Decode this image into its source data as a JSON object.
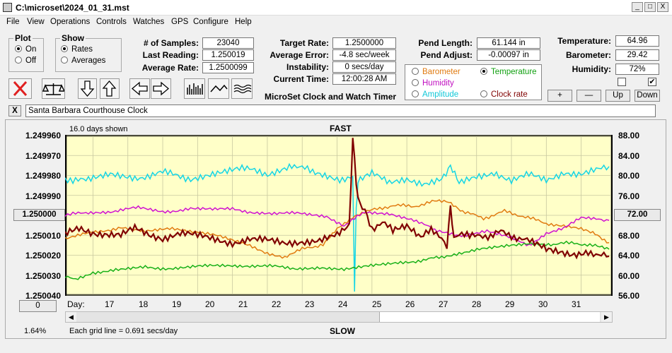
{
  "window": {
    "title": "C:\\microset\\2024_01_31.mst",
    "minimize": "_",
    "maximize": "□",
    "close": "X"
  },
  "menu": [
    "File",
    "View",
    "Operations",
    "Controls",
    "Watches",
    "GPS",
    "Configure",
    "Help"
  ],
  "plot_group": {
    "title": "Plot",
    "options": [
      "On",
      "Off"
    ],
    "selected": "On"
  },
  "show_group": {
    "title": "Show",
    "options": [
      "Rates",
      "Averages"
    ],
    "selected": "Rates"
  },
  "stats": {
    "samples_label": "# of Samples:",
    "samples": "23040",
    "last_label": "Last Reading:",
    "last": "1.250019",
    "avg_rate_label": "Average Rate:",
    "avg_rate": "1.2500099",
    "target_label": "Target Rate:",
    "target": "1.2500000",
    "avg_err_label": "Average Error:",
    "avg_err": "-4.8 sec/week",
    "instab_label": "Instability:",
    "instab": "0 secs/day",
    "time_label": "Current Time:",
    "time": "12:00:28 AM",
    "pend_len_label": "Pend Length:",
    "pend_len": "61.144 in",
    "pend_adj_label": "Pend Adjust:",
    "pend_adj": "-0.00097 in",
    "temp_label": "Temperature:",
    "temp": "64.96",
    "baro_label": "Barometer:",
    "baro": "29.42",
    "hum_label": "Humidity:",
    "hum": "72%"
  },
  "app_caption": "MicroSet Clock and Watch Timer",
  "aux_options": [
    {
      "label": "Barometer",
      "color": "#e07a10",
      "selected": false
    },
    {
      "label": "Temperature",
      "color": "#10a010",
      "selected": true
    },
    {
      "label": "Humidity",
      "color": "#c010c0",
      "selected": false
    },
    {
      "label": "Clock rate",
      "color": "#800000",
      "selected": false
    },
    {
      "label": "Amplitude",
      "color": "#10c8d8",
      "selected": false
    }
  ],
  "aux_buttons": [
    "+",
    "—",
    "Up",
    "Down"
  ],
  "checkbox_right_checked": "✔",
  "description": {
    "close": "X",
    "value": "Santa Barbara Courthouse Clock"
  },
  "chart_data": {
    "type": "line",
    "days_shown": "16.0 days shown",
    "top_label": "FAST",
    "bottom_label": "SLOW",
    "grid_note": "Each grid line = 0.691 secs/day",
    "left_ticks": [
      "1.249960",
      "1.249970",
      "1.249980",
      "1.249990",
      "1.250000",
      "1.250010",
      "1.250020",
      "1.250030",
      "1.250040"
    ],
    "right_ticks": [
      "88.00",
      "84.00",
      "80.00",
      "76.00",
      "72.00",
      "68.00",
      "64.00",
      "60.00",
      "56.00"
    ],
    "left_ylim": [
      1.24996,
      1.25004
    ],
    "right_ylim": [
      56,
      88
    ],
    "x_label": "Day:",
    "x_days": [
      "17",
      "18",
      "19",
      "20",
      "21",
      "22",
      "23",
      "24",
      "25",
      "26",
      "27",
      "28",
      "29",
      "30",
      "31"
    ],
    "xlim": [
      16.2,
      31.9
    ],
    "left_button": "1.250000",
    "right_button": "72.00",
    "bottom_left_button": "0",
    "percent": "1.64%",
    "series": [
      {
        "color": "#15d5e5",
        "axis": "right",
        "x": [
          16.2,
          16.8,
          17.5,
          18.2,
          19,
          19.8,
          20.5,
          21.2,
          22,
          22.7,
          23.3,
          24,
          24.45,
          24.5,
          24.55,
          24.6,
          25,
          25.5,
          26,
          26.5,
          27,
          27.25,
          27.5,
          28,
          28.5,
          29,
          29.5,
          30,
          30.5,
          31,
          31.5,
          31.8
        ],
        "y": [
          79.5,
          78.8,
          80.2,
          79.6,
          80.5,
          79.5,
          80.6,
          81.4,
          80.3,
          82.3,
          80.6,
          79.4,
          79.6,
          56.5,
          74.0,
          78.5,
          80.4,
          78.2,
          79.3,
          78.6,
          79.2,
          82.3,
          78.2,
          79.8,
          80.8,
          78.9,
          80.0,
          79.0,
          80.8,
          80.3,
          81.0,
          81.8
        ]
      },
      {
        "color": "#e07a10",
        "axis": "right",
        "x": [
          16.2,
          17,
          17.8,
          18.5,
          19.2,
          20,
          20.8,
          21.5,
          22,
          22.5,
          23,
          23.6,
          24,
          24.5,
          25,
          25.6,
          26.2,
          26.8,
          27.2,
          27.6,
          28.2,
          28.8,
          29.4,
          30,
          30.5,
          31,
          31.4,
          31.8
        ],
        "y": [
          67.5,
          68.5,
          69.6,
          68.7,
          69.2,
          68.8,
          67.4,
          66.0,
          64.5,
          63.5,
          65.2,
          66.2,
          69.5,
          71.8,
          73.0,
          74.0,
          73.8,
          74.8,
          74.6,
          72.8,
          71.4,
          72.8,
          71.7,
          70.4,
          70.0,
          69.2,
          68.4,
          66.5
        ]
      },
      {
        "color": "#d010d0",
        "axis": "right",
        "x": [
          16.2,
          16.8,
          17.5,
          18.3,
          19,
          19.8,
          20.5,
          21,
          21.5,
          22.2,
          23,
          23.7,
          24.2,
          24.8,
          25.5,
          26.2,
          26.8,
          27.5,
          28.3,
          29,
          29.5,
          30,
          30.5,
          31,
          31.5,
          31.8
        ],
        "y": [
          72.0,
          72.6,
          72.8,
          73.5,
          72.7,
          73.3,
          73.1,
          73.3,
          72.7,
          72.5,
          72.3,
          71.8,
          70.0,
          72.6,
          72.4,
          71.2,
          69.0,
          68.0,
          68.7,
          67.4,
          66.0,
          68.5,
          69.4,
          71.4,
          71.3,
          71.0
        ]
      },
      {
        "color": "#18b018",
        "axis": "right",
        "x": [
          16.2,
          16.5,
          17,
          17.8,
          18.5,
          19.3,
          20,
          21,
          22,
          22.8,
          23.5,
          24.2,
          24.9,
          25.6,
          26.4,
          27,
          27.5,
          28.3,
          29,
          29.5,
          30.2,
          30.8,
          31.4,
          31.8
        ],
        "y": [
          59.6,
          59.1,
          60.6,
          61.0,
          61.6,
          61.3,
          61.7,
          62.0,
          61.8,
          61.4,
          61.6,
          61.2,
          61.8,
          62.2,
          63.0,
          63.6,
          64.5,
          65.3,
          66.0,
          66.5,
          66.2,
          66.5,
          65.8,
          65.2
        ]
      },
      {
        "color": "#800000",
        "axis": "right",
        "x": [
          16.2,
          16.6,
          17,
          17.4,
          17.8,
          18.2,
          18.6,
          19,
          19.5,
          20,
          20.5,
          21,
          21.5,
          22,
          22.5,
          23,
          23.5,
          24,
          24.35,
          24.45,
          24.55,
          24.65,
          24.8,
          25,
          25.3,
          25.6,
          26,
          26.4,
          26.7,
          27,
          27.15,
          27.25,
          27.35,
          27.5,
          27.8,
          28.1,
          28.4,
          28.7,
          29,
          29.3,
          29.6,
          30,
          30.4,
          30.8,
          31.2,
          31.5,
          31.8
        ],
        "y": [
          68.0,
          69.3,
          68.6,
          68.4,
          68.0,
          69.2,
          68.0,
          67.5,
          68.3,
          67.8,
          67.3,
          66.6,
          67.2,
          66.8,
          66.4,
          66.9,
          67.0,
          67.8,
          69.6,
          88.0,
          78.0,
          74.5,
          73.4,
          69.5,
          70.5,
          68.8,
          69.5,
          67.6,
          68.8,
          67.8,
          66.0,
          73.5,
          67.8,
          68.4,
          67.6,
          68.2,
          67.8,
          68.6,
          68.0,
          67.3,
          66.4,
          65.0,
          64.8,
          64.4,
          64.6,
          64.4,
          63.8
        ]
      }
    ]
  }
}
